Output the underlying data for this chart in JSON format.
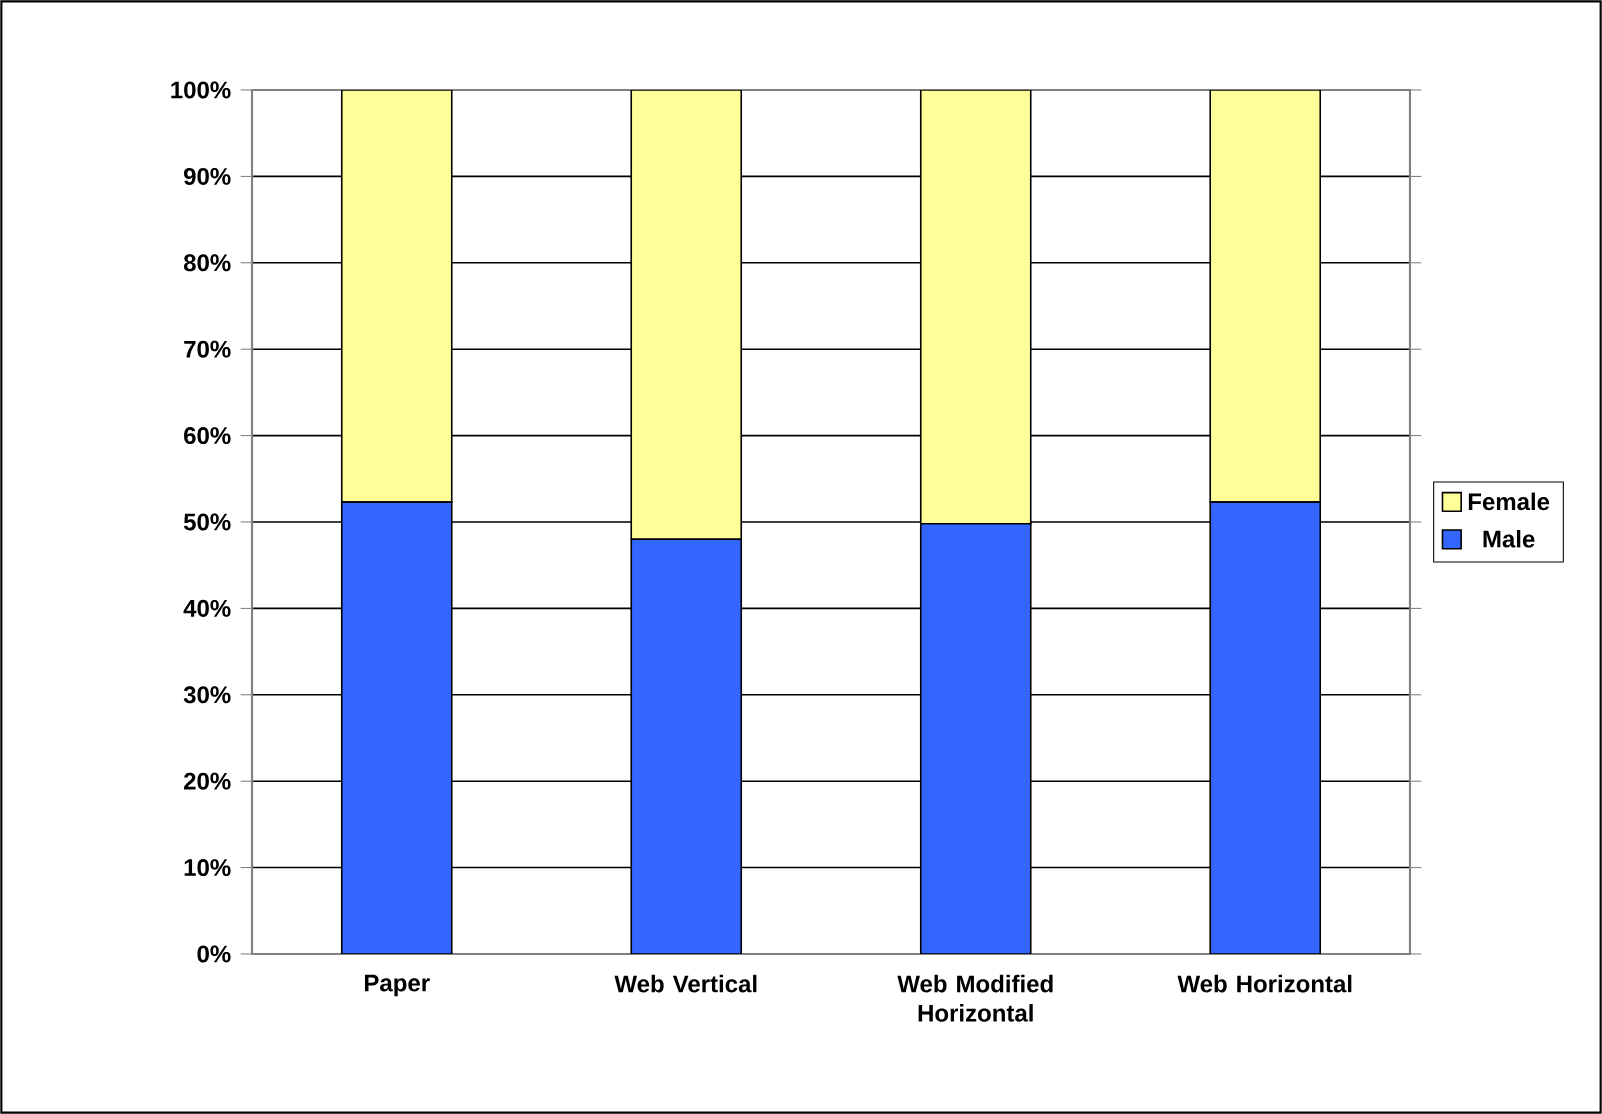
{
  "chart_data": {
    "type": "bar",
    "stacked": true,
    "categories": [
      "Paper",
      "Web Vertical",
      "Web Modified Horizontal",
      "Web Horizontal"
    ],
    "series": [
      {
        "name": "Male",
        "color": "#3366ff",
        "values": [
          52.3,
          48.0,
          49.8,
          52.3
        ]
      },
      {
        "name": "Female",
        "color": "#ffff99",
        "values": [
          47.7,
          52.0,
          50.2,
          47.7
        ]
      }
    ],
    "ylim": [
      0,
      100
    ],
    "yticks": [
      {
        "value": 0,
        "label": "0%"
      },
      {
        "value": 10,
        "label": "10%"
      },
      {
        "value": 20,
        "label": "20%"
      },
      {
        "value": 30,
        "label": "30%"
      },
      {
        "value": 40,
        "label": "40%"
      },
      {
        "value": 50,
        "label": "50%"
      },
      {
        "value": 60,
        "label": "60%"
      },
      {
        "value": 70,
        "label": "70%"
      },
      {
        "value": 80,
        "label": "80%"
      },
      {
        "value": 90,
        "label": "90%"
      },
      {
        "value": 100,
        "label": "100%"
      }
    ],
    "grid": "y",
    "legend": "right"
  }
}
